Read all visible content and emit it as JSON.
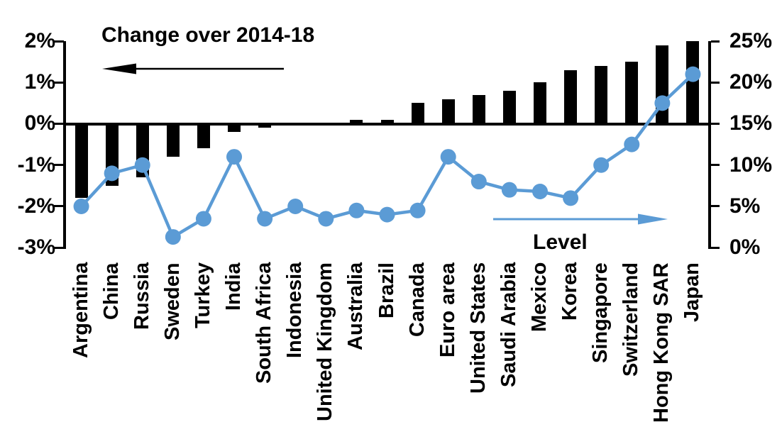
{
  "chart_data": {
    "type": "bar",
    "subtype": "bar-line-combo",
    "title": "Change over 2014-18",
    "categories": [
      "Argentina",
      "China",
      "Russia",
      "Sweden",
      "Turkey",
      "India",
      "South Africa",
      "Indonesia",
      "United Kingdom",
      "Australia",
      "Brazil",
      "Canada",
      "Euro area",
      "United States",
      "Saudi Arabia",
      "Mexico",
      "Korea",
      "Singapore",
      "Switzerland",
      "Hong Kong SAR",
      "Japan"
    ],
    "series": [
      {
        "name": "Change over 2014-18",
        "type": "bar",
        "axis": "left",
        "color": "#000000",
        "values": [
          -1.8,
          -1.5,
          -1.3,
          -0.8,
          -0.6,
          -0.2,
          -0.1,
          0,
          0,
          0.1,
          0.1,
          0.5,
          0.6,
          0.7,
          0.8,
          1.0,
          1.3,
          1.4,
          1.5,
          1.9,
          2.0
        ]
      },
      {
        "name": "Level",
        "type": "line",
        "axis": "right",
        "color": "#5B9BD5",
        "values": [
          5,
          9,
          10,
          1.3,
          3.5,
          11,
          3.5,
          5,
          3.5,
          4.5,
          4,
          4.5,
          11,
          8,
          7,
          6.8,
          6,
          10,
          12.5,
          17.5,
          21
        ]
      }
    ],
    "left_axis": {
      "min": -3,
      "max": 2,
      "tick_labels": [
        "2%",
        "1%",
        "0%",
        "-1%",
        "-2%",
        "-3%"
      ],
      "unit": "%"
    },
    "right_axis": {
      "min": 0,
      "max": 25,
      "tick_labels": [
        "25%",
        "20%",
        "15%",
        "10%",
        "5%",
        "0%"
      ],
      "unit": "%"
    },
    "annotations": [
      {
        "text": "Change over 2014-18",
        "arrow_direction": "left",
        "arrow_color": "#000000"
      },
      {
        "text": "Level",
        "arrow_direction": "right",
        "arrow_color": "#5B9BD5"
      }
    ],
    "grid": "off",
    "legend": "none"
  }
}
